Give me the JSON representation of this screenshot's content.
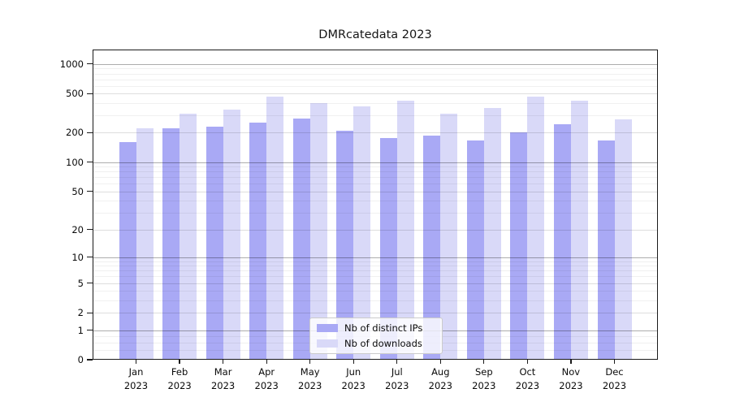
{
  "chart_data": {
    "type": "bar",
    "title": "DMRcatedata 2023",
    "y_scale": "log1p",
    "ylim": [
      0,
      1400
    ],
    "grid": true,
    "legend_position": "bottom-center",
    "y_tick_labels": [
      "0",
      "1",
      "2",
      "5",
      "10",
      "20",
      "50",
      "100",
      "200",
      "500",
      "1000"
    ],
    "y_tick_values": [
      0,
      1,
      2,
      5,
      10,
      20,
      50,
      100,
      200,
      500,
      1000
    ],
    "grid_decade_values": [
      1,
      10,
      100,
      1000
    ],
    "grid_medium_values": [
      2,
      5,
      20,
      50,
      200,
      500
    ],
    "grid_minor_values": [
      0.25,
      0.5,
      0.75,
      3,
      4,
      6,
      7,
      8,
      9,
      30,
      40,
      60,
      70,
      80,
      90,
      300,
      400,
      600,
      700,
      800,
      900
    ],
    "months": [
      "Jan",
      "Feb",
      "Mar",
      "Apr",
      "May",
      "Jun",
      "Jul",
      "Aug",
      "Sep",
      "Oct",
      "Nov",
      "Dec"
    ],
    "year_label": "2023",
    "series": [
      {
        "name": "Nb of distinct IPs",
        "color": "#a9a9f5",
        "values": [
          159,
          223,
          230,
          253,
          278,
          209,
          175,
          186,
          168,
          203,
          245,
          168
        ]
      },
      {
        "name": "Nb of downloads",
        "color": "#d9d9f8",
        "values": [
          222,
          311,
          347,
          470,
          401,
          370,
          425,
          315,
          359,
          470,
          425,
          275
        ]
      }
    ]
  }
}
